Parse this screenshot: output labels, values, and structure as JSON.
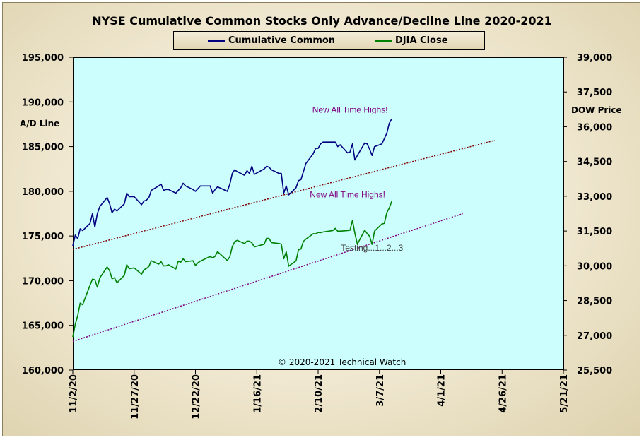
{
  "chart_data": {
    "type": "line",
    "title": "NYSE Cumulative  Common Stocks Only Advance/Decline  Line  2020-2021",
    "x_tick_labels": [
      "11/2/20",
      "11/27/20",
      "12/22/20",
      "1/16/21",
      "2/10/21",
      "3/7/21",
      "4/1/21",
      "4/26/21",
      "5/21/21"
    ],
    "x_ticks": [
      "2020-11-02",
      "2020-11-27",
      "2020-12-22",
      "2021-01-16",
      "2021-02-10",
      "2021-03-07",
      "2021-04-01",
      "2021-04-26",
      "2021-05-21"
    ],
    "xlim": [
      "2020-11-02",
      "2021-05-21"
    ],
    "left_axis": {
      "label": "A/D Line",
      "ylim": [
        160000,
        195000
      ],
      "ticks": [
        160000,
        165000,
        170000,
        175000,
        180000,
        185000,
        190000,
        195000
      ],
      "tick_labels": [
        "160,000",
        "165,000",
        "170,000",
        "175,000",
        "180,000",
        "185,000",
        "190,000",
        "195,000"
      ]
    },
    "right_axis": {
      "label": "DOW Price",
      "ylim": [
        25500,
        39000
      ],
      "ticks": [
        25500,
        27000,
        28500,
        30000,
        31500,
        33000,
        34500,
        36000,
        37500,
        39000
      ],
      "tick_labels": [
        "25,500",
        "27,000",
        "28,500",
        "30,000",
        "31,500",
        "33,000",
        "34,500",
        "36,000",
        "37,500",
        "39,000"
      ]
    },
    "grid": false,
    "legend_position": "top",
    "series": [
      {
        "name": "Cumulative Common",
        "axis": "left",
        "color": "#000080",
        "points": [
          [
            "2020-11-02",
            173900
          ],
          [
            "2020-11-03",
            175100
          ],
          [
            "2020-11-04",
            174700
          ],
          [
            "2020-11-05",
            175800
          ],
          [
            "2020-11-06",
            175600
          ],
          [
            "2020-11-09",
            176400
          ],
          [
            "2020-11-10",
            177500
          ],
          [
            "2020-11-11",
            176000
          ],
          [
            "2020-11-12",
            177500
          ],
          [
            "2020-11-13",
            178300
          ],
          [
            "2020-11-16",
            179300
          ],
          [
            "2020-11-17",
            178600
          ],
          [
            "2020-11-18",
            177600
          ],
          [
            "2020-11-19",
            178000
          ],
          [
            "2020-11-20",
            177800
          ],
          [
            "2020-11-23",
            178600
          ],
          [
            "2020-11-24",
            179800
          ],
          [
            "2020-11-25",
            179400
          ],
          [
            "2020-11-27",
            179400
          ],
          [
            "2020-11-30",
            178500
          ],
          [
            "2020-12-01",
            178900
          ],
          [
            "2020-12-02",
            179000
          ],
          [
            "2020-12-03",
            179300
          ],
          [
            "2020-12-04",
            180100
          ],
          [
            "2020-12-07",
            180600
          ],
          [
            "2020-12-08",
            180800
          ],
          [
            "2020-12-09",
            180100
          ],
          [
            "2020-12-10",
            180200
          ],
          [
            "2020-12-11",
            180200
          ],
          [
            "2020-12-14",
            179800
          ],
          [
            "2020-12-15",
            180100
          ],
          [
            "2020-12-16",
            180400
          ],
          [
            "2020-12-17",
            180900
          ],
          [
            "2020-12-18",
            180600
          ],
          [
            "2020-12-21",
            180200
          ],
          [
            "2020-12-22",
            180000
          ],
          [
            "2020-12-23",
            180300
          ],
          [
            "2020-12-24",
            180600
          ],
          [
            "2020-12-28",
            180600
          ],
          [
            "2020-12-29",
            179800
          ],
          [
            "2020-12-30",
            180200
          ],
          [
            "2020-12-31",
            180500
          ],
          [
            "2021-01-04",
            180000
          ],
          [
            "2021-01-05",
            180800
          ],
          [
            "2021-01-06",
            182000
          ],
          [
            "2021-01-07",
            182400
          ],
          [
            "2021-01-08",
            182200
          ],
          [
            "2021-01-11",
            181800
          ],
          [
            "2021-01-12",
            182300
          ],
          [
            "2021-01-13",
            182000
          ],
          [
            "2021-01-14",
            182800
          ],
          [
            "2021-01-15",
            181900
          ],
          [
            "2021-01-19",
            182500
          ],
          [
            "2021-01-20",
            182800
          ],
          [
            "2021-01-21",
            182700
          ],
          [
            "2021-01-22",
            182400
          ],
          [
            "2021-01-25",
            182000
          ],
          [
            "2021-01-26",
            182000
          ],
          [
            "2021-01-27",
            179800
          ],
          [
            "2021-01-28",
            180600
          ],
          [
            "2021-01-29",
            179600
          ],
          [
            "2021-02-01",
            180400
          ],
          [
            "2021-02-02",
            181200
          ],
          [
            "2021-02-03",
            181300
          ],
          [
            "2021-02-04",
            182200
          ],
          [
            "2021-02-05",
            183100
          ],
          [
            "2021-02-08",
            184200
          ],
          [
            "2021-02-09",
            184800
          ],
          [
            "2021-02-10",
            184800
          ],
          [
            "2021-02-11",
            185300
          ],
          [
            "2021-02-12",
            185500
          ],
          [
            "2021-02-16",
            185500
          ],
          [
            "2021-02-17",
            185500
          ],
          [
            "2021-02-18",
            185000
          ],
          [
            "2021-02-19",
            185200
          ],
          [
            "2021-02-22",
            184300
          ],
          [
            "2021-02-23",
            184400
          ],
          [
            "2021-02-24",
            185300
          ],
          [
            "2021-02-25",
            183500
          ],
          [
            "2021-02-26",
            184000
          ],
          [
            "2021-03-01",
            185400
          ],
          [
            "2021-03-02",
            185300
          ],
          [
            "2021-03-03",
            184700
          ],
          [
            "2021-03-04",
            184000
          ],
          [
            "2021-03-05",
            185000
          ],
          [
            "2021-03-08",
            185300
          ],
          [
            "2021-03-09",
            185900
          ],
          [
            "2021-03-10",
            186500
          ],
          [
            "2021-03-11",
            187600
          ],
          [
            "2021-03-12",
            188100
          ]
        ]
      },
      {
        "name": "DJIA Close",
        "axis": "right",
        "color": "#008000",
        "points": [
          [
            "2020-11-02",
            26925
          ],
          [
            "2020-11-03",
            27480
          ],
          [
            "2020-11-04",
            27848
          ],
          [
            "2020-11-05",
            28390
          ],
          [
            "2020-11-06",
            28323
          ],
          [
            "2020-11-09",
            29158
          ],
          [
            "2020-11-10",
            29421
          ],
          [
            "2020-11-11",
            29398
          ],
          [
            "2020-11-12",
            29080
          ],
          [
            "2020-11-13",
            29480
          ],
          [
            "2020-11-16",
            29950
          ],
          [
            "2020-11-17",
            29784
          ],
          [
            "2020-11-18",
            29439
          ],
          [
            "2020-11-19",
            29483
          ],
          [
            "2020-11-20",
            29263
          ],
          [
            "2020-11-23",
            29591
          ],
          [
            "2020-11-24",
            30046
          ],
          [
            "2020-11-25",
            29873
          ],
          [
            "2020-11-27",
            29910
          ],
          [
            "2020-11-30",
            29639
          ],
          [
            "2020-12-01",
            29824
          ],
          [
            "2020-12-02",
            29884
          ],
          [
            "2020-12-03",
            29970
          ],
          [
            "2020-12-04",
            30218
          ],
          [
            "2020-12-07",
            30070
          ],
          [
            "2020-12-08",
            30174
          ],
          [
            "2020-12-09",
            29999
          ],
          [
            "2020-12-10",
            29999
          ],
          [
            "2020-12-11",
            30046
          ],
          [
            "2020-12-14",
            29861
          ],
          [
            "2020-12-15",
            30199
          ],
          [
            "2020-12-16",
            30155
          ],
          [
            "2020-12-17",
            30304
          ],
          [
            "2020-12-18",
            30179
          ],
          [
            "2020-12-21",
            30216
          ],
          [
            "2020-12-22",
            30015
          ],
          [
            "2020-12-23",
            30129
          ],
          [
            "2020-12-24",
            30200
          ],
          [
            "2020-12-28",
            30404
          ],
          [
            "2020-12-29",
            30336
          ],
          [
            "2020-12-30",
            30410
          ],
          [
            "2020-12-31",
            30606
          ],
          [
            "2021-01-04",
            30223
          ],
          [
            "2021-01-05",
            30392
          ],
          [
            "2021-01-06",
            30829
          ],
          [
            "2021-01-07",
            31041
          ],
          [
            "2021-01-08",
            31098
          ],
          [
            "2021-01-11",
            30960
          ],
          [
            "2021-01-12",
            31068
          ],
          [
            "2021-01-13",
            31061
          ],
          [
            "2021-01-14",
            30991
          ],
          [
            "2021-01-15",
            30814
          ],
          [
            "2021-01-19",
            30930
          ],
          [
            "2021-01-20",
            31188
          ],
          [
            "2021-01-21",
            31176
          ],
          [
            "2021-01-22",
            30997
          ],
          [
            "2021-01-25",
            30960
          ],
          [
            "2021-01-26",
            30937
          ],
          [
            "2021-01-27",
            30303
          ],
          [
            "2021-01-28",
            30603
          ],
          [
            "2021-01-29",
            29983
          ],
          [
            "2021-02-01",
            30212
          ],
          [
            "2021-02-02",
            30688
          ],
          [
            "2021-02-03",
            30724
          ],
          [
            "2021-02-04",
            31056
          ],
          [
            "2021-02-05",
            31148
          ],
          [
            "2021-02-08",
            31386
          ],
          [
            "2021-02-09",
            31376
          ],
          [
            "2021-02-10",
            31438
          ],
          [
            "2021-02-11",
            31431
          ],
          [
            "2021-02-12",
            31458
          ],
          [
            "2021-02-16",
            31523
          ],
          [
            "2021-02-17",
            31613
          ],
          [
            "2021-02-18",
            31494
          ],
          [
            "2021-02-19",
            31494
          ],
          [
            "2021-02-22",
            31522
          ],
          [
            "2021-02-23",
            31537
          ],
          [
            "2021-02-24",
            31962
          ],
          [
            "2021-02-25",
            31402
          ],
          [
            "2021-02-26",
            30932
          ],
          [
            "2021-03-01",
            31535
          ],
          [
            "2021-03-02",
            31391
          ],
          [
            "2021-03-03",
            31270
          ],
          [
            "2021-03-04",
            30924
          ],
          [
            "2021-03-05",
            31496
          ],
          [
            "2021-03-08",
            31802
          ],
          [
            "2021-03-09",
            31832
          ],
          [
            "2021-03-10",
            32297
          ],
          [
            "2021-03-11",
            32485
          ],
          [
            "2021-03-12",
            32779
          ]
        ]
      }
    ],
    "trendlines": [
      {
        "axis": "left",
        "color": "#800000",
        "from": [
          "2020-11-02",
          173500
        ],
        "to": [
          "2021-04-23",
          185700
        ]
      },
      {
        "axis": "left",
        "color": "#800080",
        "from": [
          "2020-11-02",
          163200
        ],
        "to": [
          "2021-04-10",
          177500
        ]
      }
    ],
    "annotations": [
      {
        "text": "New All Time Highs!",
        "color": "#800080",
        "x": "2021-02-23",
        "y": 188800,
        "axis": "left"
      },
      {
        "text": "New All Time Highs!",
        "color": "#800080",
        "x": "2021-02-22",
        "y": 32950,
        "axis": "right"
      },
      {
        "text": "Testing...1...2...3",
        "color": "#404040",
        "x": "2021-03-04",
        "y": 30650,
        "axis": "right"
      }
    ],
    "credit": "© 2020-2021  Technical  Watch"
  }
}
